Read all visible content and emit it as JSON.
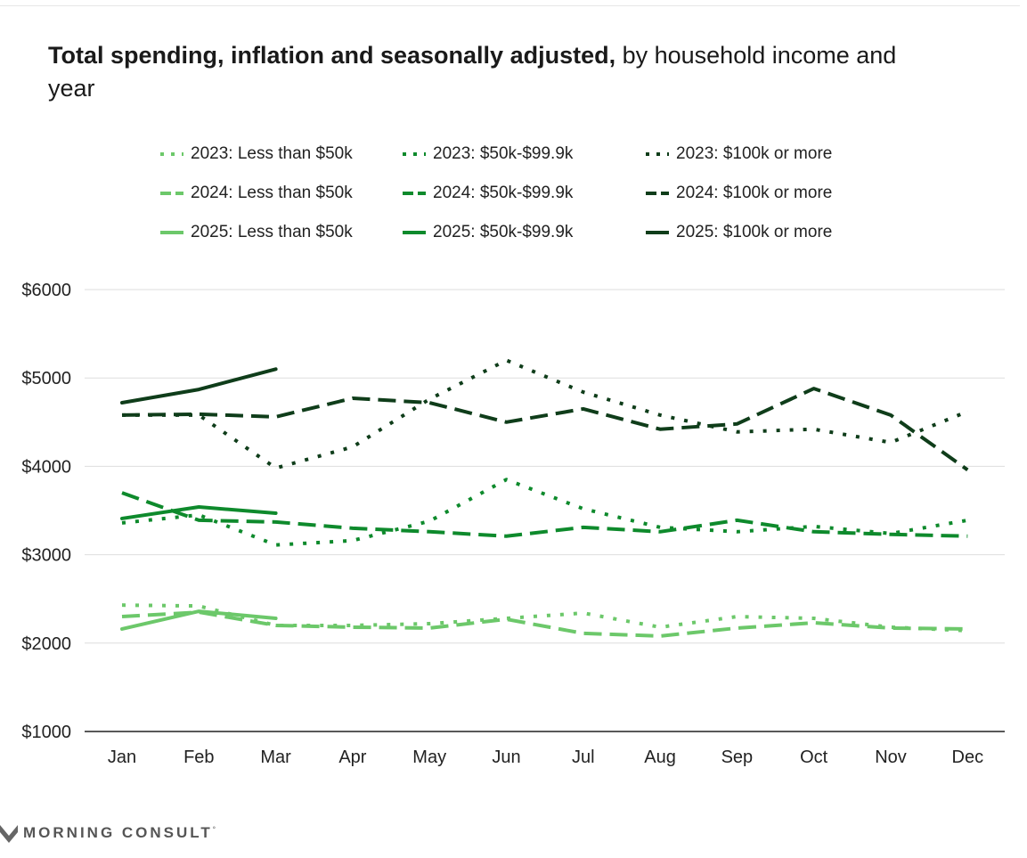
{
  "title": {
    "bold": "Total spending, inflation and seasonally adjusted,",
    "rest": " by household income and year"
  },
  "brand": {
    "name": "MORNING CONSULT",
    "icon": "morning-consult-logo-icon"
  },
  "chart_data": {
    "type": "line",
    "title": "Total spending, inflation and seasonally adjusted, by household income and year",
    "xlabel": "",
    "ylabel": "",
    "categories": [
      "Jan",
      "Feb",
      "Mar",
      "Apr",
      "May",
      "Jun",
      "Jul",
      "Aug",
      "Sep",
      "Oct",
      "Nov",
      "Dec"
    ],
    "yticks": [
      "$6000",
      "$5000",
      "$4000",
      "$3000",
      "$2000",
      "$1000"
    ],
    "ytick_values": [
      6000,
      5000,
      4000,
      3000,
      2000,
      1000
    ],
    "ylim": [
      1000,
      6000
    ],
    "grid": true,
    "legend_position": "top",
    "series": [
      {
        "name": "2023: Less than $50k",
        "color": "#6cc86a",
        "style": "dotted",
        "values": [
          2430,
          2420,
          2200,
          2200,
          2220,
          2280,
          2340,
          2180,
          2300,
          2280,
          2180,
          2140
        ]
      },
      {
        "name": "2023: $50k-$99.9k",
        "color": "#0e8a2c",
        "style": "dotted",
        "values": [
          3360,
          3450,
          3110,
          3160,
          3380,
          3850,
          3520,
          3310,
          3260,
          3320,
          3240,
          3390
        ]
      },
      {
        "name": "2023: $100k or more",
        "color": "#0f3d1a",
        "style": "dotted",
        "values": [
          4580,
          4580,
          3980,
          4220,
          4760,
          5200,
          4840,
          4580,
          4390,
          4420,
          4270,
          4620
        ]
      },
      {
        "name": "2024: Less than $50k",
        "color": "#6cc86a",
        "style": "dashed",
        "values": [
          2300,
          2350,
          2200,
          2180,
          2170,
          2270,
          2110,
          2080,
          2170,
          2230,
          2170,
          2160
        ]
      },
      {
        "name": "2024: $50k-$99.9k",
        "color": "#0e8a2c",
        "style": "dashed",
        "values": [
          3700,
          3390,
          3370,
          3300,
          3260,
          3210,
          3310,
          3260,
          3390,
          3260,
          3230,
          3210
        ]
      },
      {
        "name": "2024: $100k or more",
        "color": "#0f3d1a",
        "style": "dashed",
        "values": [
          4580,
          4590,
          4560,
          4770,
          4720,
          4500,
          4650,
          4420,
          4480,
          4880,
          4580,
          3960
        ]
      },
      {
        "name": "2025: Less than $50k",
        "color": "#6cc86a",
        "style": "solid",
        "values": [
          2160,
          2360,
          2280,
          null,
          null,
          null,
          null,
          null,
          null,
          null,
          null,
          null
        ]
      },
      {
        "name": "2025: $50k-$99.9k",
        "color": "#0e8a2c",
        "style": "solid",
        "values": [
          3410,
          3540,
          3470,
          null,
          null,
          null,
          null,
          null,
          null,
          null,
          null,
          null
        ]
      },
      {
        "name": "2025: $100k or more",
        "color": "#0f3d1a",
        "style": "solid",
        "values": [
          4720,
          4870,
          5100,
          null,
          null,
          null,
          null,
          null,
          null,
          null,
          null,
          null
        ]
      }
    ]
  }
}
